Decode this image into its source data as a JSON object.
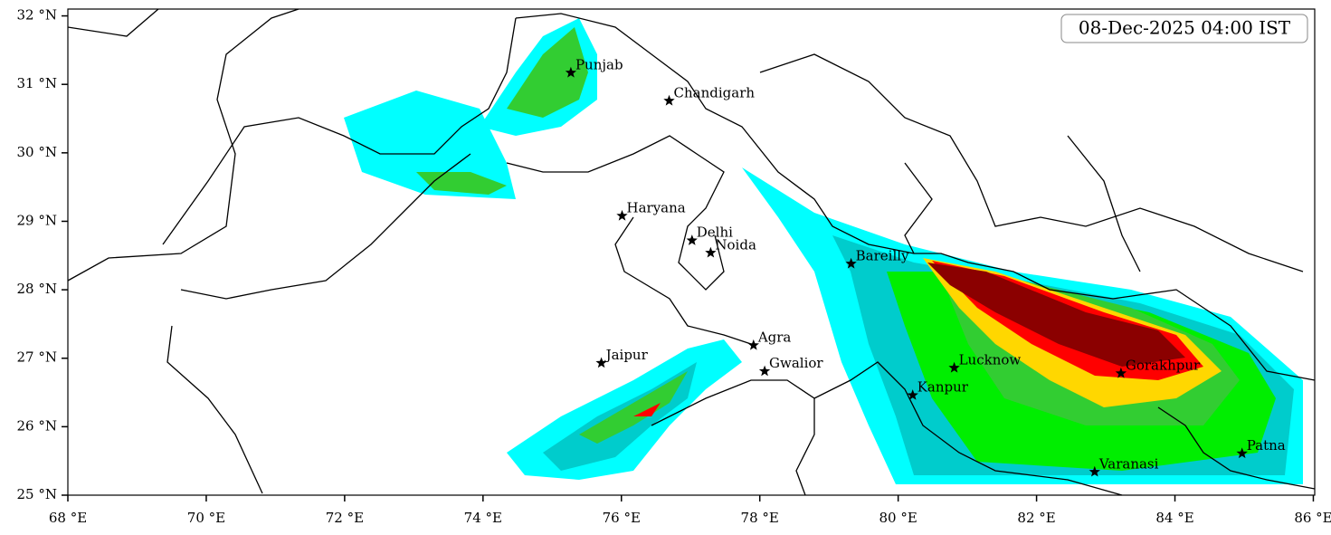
{
  "chart_data": {
    "type": "map",
    "timestamp": "08-Dec-2025 04:00 IST",
    "xlim": [
      68,
      86.02
    ],
    "ylim": [
      25,
      32.1
    ],
    "xticks": [
      {
        "value": 68,
        "label": "68 °E"
      },
      {
        "value": 70,
        "label": "70 °E"
      },
      {
        "value": 72,
        "label": "72 °E"
      },
      {
        "value": 74,
        "label": "74 °E"
      },
      {
        "value": 76,
        "label": "76 °E"
      },
      {
        "value": 78,
        "label": "78 °E"
      },
      {
        "value": 80,
        "label": "80 °E"
      },
      {
        "value": 82,
        "label": "82 °E"
      },
      {
        "value": 84,
        "label": "84 °E"
      },
      {
        "value": 86,
        "label": "86 °E"
      }
    ],
    "yticks": [
      {
        "value": 25,
        "label": "25 °N"
      },
      {
        "value": 26,
        "label": "26 °N"
      },
      {
        "value": 27,
        "label": "27 °N"
      },
      {
        "value": 28,
        "label": "28 °N"
      },
      {
        "value": 29,
        "label": "29 °N"
      },
      {
        "value": 30,
        "label": "30 °N"
      },
      {
        "value": 31,
        "label": "31 °N"
      },
      {
        "value": 32,
        "label": "32 °N"
      }
    ],
    "points": [
      {
        "name": "Punjab",
        "lon": 75.27,
        "lat": 31.17
      },
      {
        "name": "Chandigarh",
        "lon": 76.69,
        "lat": 30.76
      },
      {
        "name": "Haryana",
        "lon": 76.01,
        "lat": 29.08
      },
      {
        "name": "Delhi",
        "lon": 77.02,
        "lat": 28.72
      },
      {
        "name": "Noida",
        "lon": 77.29,
        "lat": 28.54
      },
      {
        "name": "Bareilly",
        "lon": 79.32,
        "lat": 28.38
      },
      {
        "name": "Agra",
        "lon": 77.91,
        "lat": 27.19
      },
      {
        "name": "Jaipur",
        "lon": 75.71,
        "lat": 26.93
      },
      {
        "name": "Gwalior",
        "lon": 78.07,
        "lat": 26.81
      },
      {
        "name": "Lucknow",
        "lon": 80.81,
        "lat": 26.86
      },
      {
        "name": "Kanpur",
        "lon": 80.21,
        "lat": 26.46
      },
      {
        "name": "Gorakhpur",
        "lon": 83.22,
        "lat": 26.78
      },
      {
        "name": "Varanasi",
        "lon": 82.84,
        "lat": 25.34
      },
      {
        "name": "Patna",
        "lon": 84.97,
        "lat": 25.61
      }
    ]
  }
}
